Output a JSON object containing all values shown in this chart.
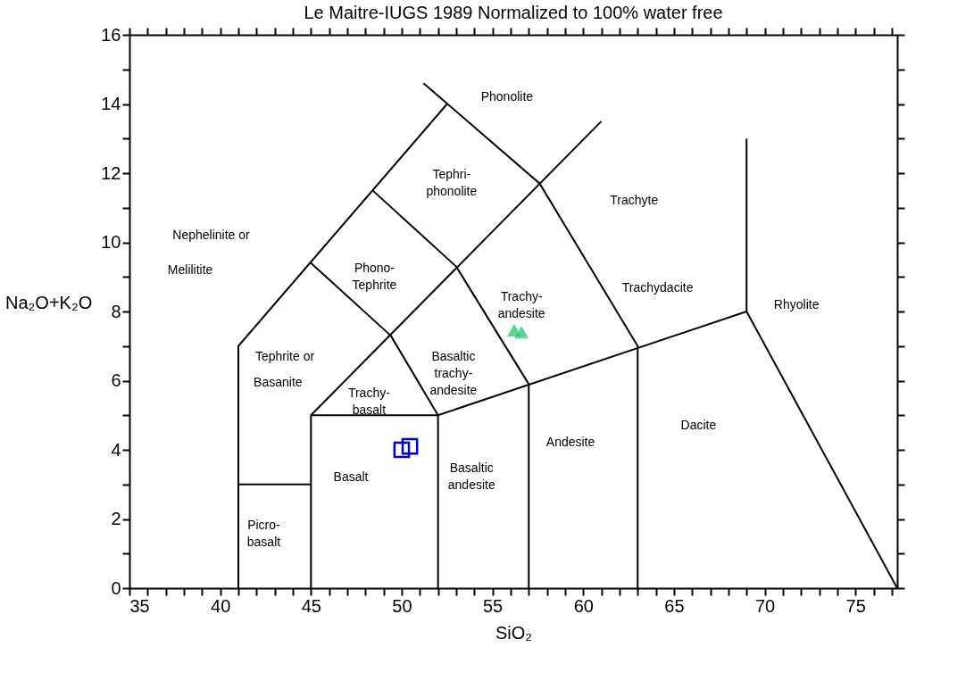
{
  "chart_data": {
    "type": "line",
    "title": "Le Maitre-IUGS 1989 Normalized to 100% water free",
    "xlabel": "SiO₂",
    "ylabel": "Na₂O+K₂O",
    "xlim": [
      35,
      77.3
    ],
    "ylim": [
      0,
      16
    ],
    "xticks": [
      35,
      {
        "value": 36,
        "label": null
      },
      {
        "value": 37,
        "label": null
      },
      {
        "value": 38,
        "label": null
      },
      {
        "value": 39,
        "label": null
      },
      40,
      {
        "value": 41,
        "label": null
      },
      {
        "value": 42,
        "label": null
      },
      {
        "value": 43,
        "label": null
      },
      {
        "value": 44,
        "label": null
      },
      45,
      {
        "value": 46,
        "label": null
      },
      {
        "value": 47,
        "label": null
      },
      {
        "value": 48,
        "label": null
      },
      {
        "value": 49,
        "label": null
      },
      50,
      {
        "value": 51,
        "label": null
      },
      {
        "value": 52,
        "label": null
      },
      {
        "value": 53,
        "label": null
      },
      {
        "value": 54,
        "label": null
      },
      55,
      {
        "value": 56,
        "label": null
      },
      {
        "value": 57,
        "label": null
      },
      {
        "value": 58,
        "label": null
      },
      {
        "value": 59,
        "label": null
      },
      60,
      {
        "value": 61,
        "label": null
      },
      {
        "value": 62,
        "label": null
      },
      {
        "value": 63,
        "label": null
      },
      {
        "value": 64,
        "label": null
      },
      65,
      {
        "value": 66,
        "label": null
      },
      {
        "value": 67,
        "label": null
      },
      {
        "value": 68,
        "label": null
      },
      {
        "value": 69,
        "label": null
      },
      70,
      {
        "value": 71,
        "label": null
      },
      {
        "value": 72,
        "label": null
      },
      {
        "value": 73,
        "label": null
      },
      {
        "value": 74,
        "label": null
      },
      75,
      {
        "value": 76,
        "label": null
      },
      {
        "value": 77,
        "label": null
      }
    ],
    "yticks": [
      0,
      {
        "value": 1,
        "label": null
      },
      2,
      {
        "value": 3,
        "label": null
      },
      4,
      {
        "value": 5,
        "label": null
      },
      6,
      {
        "value": 7,
        "label": null
      },
      8,
      {
        "value": 9,
        "label": null
      },
      10,
      {
        "value": 11,
        "label": null
      },
      12,
      {
        "value": 13,
        "label": null
      },
      14,
      {
        "value": 15,
        "label": null
      },
      16
    ],
    "grid": false,
    "series": [
      {
        "color": "#000000",
        "x": [
          41,
          41,
          52.5
        ],
        "values": [
          0,
          7,
          14
        ]
      },
      {
        "color": "#000000",
        "x": [
          41,
          45
        ],
        "values": [
          3,
          3
        ]
      },
      {
        "color": "#000000",
        "x": [
          45,
          45,
          52,
          52
        ],
        "values": [
          0,
          5,
          5,
          0
        ]
      },
      {
        "color": "#000000",
        "x": [
          45,
          61
        ],
        "values": [
          5,
          13.5
        ]
      },
      {
        "color": "#000000",
        "x": [
          52,
          69,
          69
        ],
        "values": [
          5,
          8,
          13
        ]
      },
      {
        "color": "#000000",
        "x": [
          69,
          77.3
        ],
        "values": [
          8,
          0
        ]
      },
      {
        "color": "#000000",
        "x": [
          45,
          49.4,
          52
        ],
        "values": [
          9.4,
          7.3,
          5
        ]
      },
      {
        "color": "#000000",
        "x": [
          48.4,
          53,
          57,
          57
        ],
        "values": [
          11.5,
          9.3,
          5.9,
          0
        ]
      },
      {
        "color": "#000000",
        "x": [
          51.2,
          57.6,
          63,
          63
        ],
        "values": [
          14.6,
          11.7,
          7,
          0
        ]
      },
      {
        "type": "scatter",
        "marker": "square",
        "color": "#0000cc",
        "x": [
          50.0,
          50.45
        ],
        "values": [
          4.0,
          4.1
        ]
      },
      {
        "type": "scatter",
        "marker": "triangle",
        "color": "#33cc77",
        "x": [
          56.2,
          56.6
        ],
        "values": [
          7.46,
          7.4
        ]
      }
    ],
    "annotations": [
      "Phonolite",
      "Tephri-\nphonolite",
      "Trachyte",
      "Nephelinite or",
      "Melilitite",
      "Phono-\nTephrite",
      "Trachy-\nandesite",
      "Trachydacite",
      "Rhyolite",
      "Tephrite or",
      "Basanite",
      "Basaltic\ntrachy-\nandesite",
      "Trachy-\nbasalt",
      "Basalt",
      "Basaltic\nandesite",
      "Andesite",
      "Dacite",
      "Picro-\nbasalt"
    ]
  }
}
